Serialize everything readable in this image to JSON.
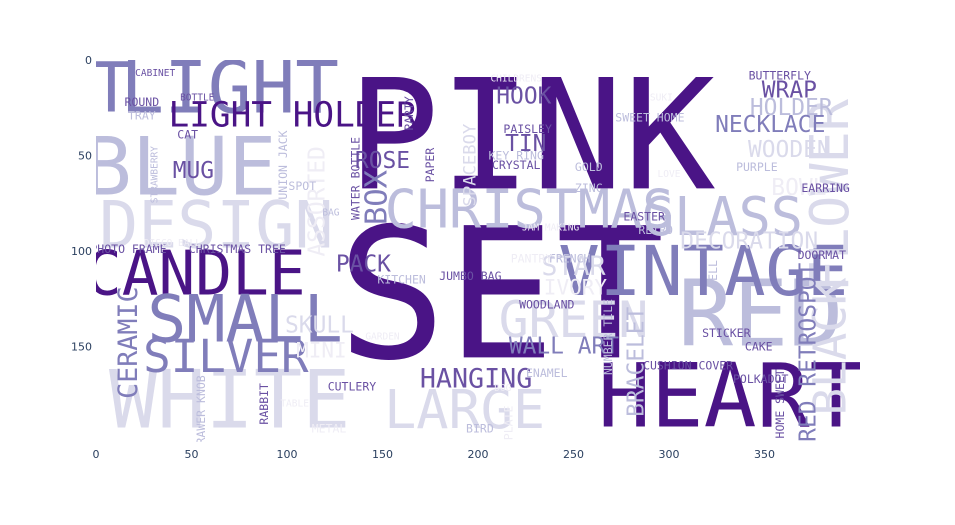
{
  "chart_data": {
    "type": "wordcloud",
    "title": "",
    "xlabel": "",
    "ylabel": "",
    "xlim": [
      0,
      400
    ],
    "ylim": [
      200,
      0
    ],
    "x_ticks": [
      0,
      50,
      100,
      150,
      200,
      250,
      300,
      350
    ],
    "y_ticks": [
      0,
      50,
      100,
      150
    ],
    "colors": {
      "darkest": "#4a1486",
      "dark": "#6a51a3",
      "mid": "#807dba",
      "light": "#bcbddc",
      "lighter": "#dadaeb",
      "lightest": "#efedf5"
    },
    "words": [
      {
        "text": "PINK",
        "x": 228,
        "y": 40,
        "size": 80,
        "color": "#4a1486",
        "rotate": 0
      },
      {
        "text": "SET",
        "x": 212,
        "y": 123,
        "size": 95,
        "color": "#4a1486",
        "rotate": 0
      },
      {
        "text": "HEART",
        "x": 332,
        "y": 176,
        "size": 46,
        "color": "#4a1486",
        "rotate": 0
      },
      {
        "text": "RED",
        "x": 348,
        "y": 133,
        "size": 48,
        "color": "#bcbddc",
        "rotate": 0
      },
      {
        "text": "BLUE",
        "x": 44,
        "y": 56,
        "size": 42,
        "color": "#bcbddc",
        "rotate": 0
      },
      {
        "text": "LIGHT",
        "x": 70,
        "y": 15,
        "size": 38,
        "color": "#807dba",
        "rotate": 0
      },
      {
        "text": "T",
        "x": 8,
        "y": 15,
        "size": 36,
        "color": "#807dba",
        "rotate": 0
      },
      {
        "text": "WHITE",
        "x": 70,
        "y": 178,
        "size": 42,
        "color": "#dadaeb",
        "rotate": 0
      },
      {
        "text": "DESIGN",
        "x": 63,
        "y": 87,
        "size": 34,
        "color": "#dadaeb",
        "rotate": 0
      },
      {
        "text": "CANDLE",
        "x": 52,
        "y": 112,
        "size": 32,
        "color": "#4a1486",
        "rotate": 0
      },
      {
        "text": "SMALL",
        "x": 78,
        "y": 136,
        "size": 34,
        "color": "#807dba",
        "rotate": 0
      },
      {
        "text": "SILVER",
        "x": 68,
        "y": 155,
        "size": 24,
        "color": "#807dba",
        "rotate": 0
      },
      {
        "text": "LIGHT HOLDER",
        "x": 103,
        "y": 29,
        "size": 18,
        "color": "#4a1486",
        "rotate": 0
      },
      {
        "text": "CHRISTMAS",
        "x": 227,
        "y": 78,
        "size": 28,
        "color": "#bcbddc",
        "rotate": 0
      },
      {
        "text": "GLASS",
        "x": 328,
        "y": 82,
        "size": 28,
        "color": "#bcbddc",
        "rotate": 0
      },
      {
        "text": "VINTAGE",
        "x": 318,
        "y": 111,
        "size": 36,
        "color": "#807dba",
        "rotate": 0
      },
      {
        "text": "FLOWER",
        "x": 384,
        "y": 71,
        "size": 28,
        "color": "#dadaeb",
        "rotate": -90
      },
      {
        "text": "BLACK",
        "x": 384,
        "y": 150,
        "size": 24,
        "color": "#dadaeb",
        "rotate": -90
      },
      {
        "text": "GREEN",
        "x": 250,
        "y": 136,
        "size": 26,
        "color": "#dadaeb",
        "rotate": 0
      },
      {
        "text": "LARGE",
        "x": 193,
        "y": 183,
        "size": 28,
        "color": "#dadaeb",
        "rotate": 0
      },
      {
        "text": "HANGING",
        "x": 199,
        "y": 167,
        "size": 14,
        "color": "#6a51a3",
        "rotate": 0
      },
      {
        "text": "WALL ART",
        "x": 245,
        "y": 150,
        "size": 12,
        "color": "#807dba",
        "rotate": 0
      },
      {
        "text": "STAR",
        "x": 250,
        "y": 108,
        "size": 14,
        "color": "#dadaeb",
        "rotate": 0
      },
      {
        "text": "BOX",
        "x": 147,
        "y": 72,
        "size": 16,
        "color": "#807dba",
        "rotate": -90
      },
      {
        "text": "ROSE",
        "x": 150,
        "y": 53,
        "size": 12,
        "color": "#6a51a3",
        "rotate": 0
      },
      {
        "text": "PACK",
        "x": 140,
        "y": 107,
        "size": 12,
        "color": "#6a51a3",
        "rotate": 0
      },
      {
        "text": "SKULL",
        "x": 117,
        "y": 139,
        "size": 12,
        "color": "#dadaeb",
        "rotate": 0
      },
      {
        "text": "HOOK",
        "x": 224,
        "y": 19,
        "size": 12,
        "color": "#6a51a3",
        "rotate": 0
      },
      {
        "text": "TIN",
        "x": 225,
        "y": 44,
        "size": 12,
        "color": "#6a51a3",
        "rotate": 0
      },
      {
        "text": "WRAP",
        "x": 363,
        "y": 16,
        "size": 12,
        "color": "#6a51a3",
        "rotate": 0
      },
      {
        "text": "HOLDER",
        "x": 364,
        "y": 25,
        "size": 12,
        "color": "#bcbddc",
        "rotate": 0
      },
      {
        "text": "NECKLACE",
        "x": 353,
        "y": 34,
        "size": 12,
        "color": "#807dba",
        "rotate": 0
      },
      {
        "text": "WOODEN",
        "x": 363,
        "y": 47,
        "size": 12,
        "color": "#dadaeb",
        "rotate": 0
      },
      {
        "text": "DECORATION",
        "x": 342,
        "y": 95,
        "size": 12,
        "color": "#dadaeb",
        "rotate": 0
      },
      {
        "text": "BOWL",
        "x": 368,
        "y": 67,
        "size": 12,
        "color": "#efedf5",
        "rotate": 0
      },
      {
        "text": "MUG",
        "x": 51,
        "y": 58,
        "size": 12,
        "color": "#6a51a3",
        "rotate": 0
      },
      {
        "text": "CERAMIC",
        "x": 17,
        "y": 148,
        "size": 14,
        "color": "#807dba",
        "rotate": -90
      },
      {
        "text": "RED RETROSPOT",
        "x": 373,
        "y": 153,
        "size": 12,
        "color": "#807dba",
        "rotate": -90
      },
      {
        "text": "BRACELET",
        "x": 283,
        "y": 158,
        "size": 12,
        "color": "#bcbddc",
        "rotate": -90
      },
      {
        "text": "ASSORTED",
        "x": 116,
        "y": 74,
        "size": 12,
        "color": "#efedf5",
        "rotate": -90
      },
      {
        "text": "IVORY",
        "x": 251,
        "y": 119,
        "size": 11,
        "color": "#efedf5",
        "rotate": 0
      },
      {
        "text": "MINI",
        "x": 118,
        "y": 152,
        "size": 11,
        "color": "#efedf5",
        "rotate": 0
      },
      {
        "text": "SPACEBOY",
        "x": 196,
        "y": 55,
        "size": 9,
        "color": "#dadaeb",
        "rotate": -90
      },
      {
        "text": "PAISLEY",
        "x": 226,
        "y": 36,
        "size": 6,
        "color": "#6a51a3",
        "rotate": 0
      },
      {
        "text": "CRYSTAL",
        "x": 220,
        "y": 55,
        "size": 6,
        "color": "#6a51a3",
        "rotate": 0
      },
      {
        "text": "KEY RING",
        "x": 220,
        "y": 50,
        "size": 6,
        "color": "#bcbddc",
        "rotate": 0
      },
      {
        "text": "PHOTO FRAME",
        "x": 17,
        "y": 99,
        "size": 6,
        "color": "#6a51a3",
        "rotate": 0
      },
      {
        "text": "CHRISTMAS TREE",
        "x": 74,
        "y": 99,
        "size": 6,
        "color": "#6a51a3",
        "rotate": 0
      },
      {
        "text": "CUSHION COVER",
        "x": 310,
        "y": 160,
        "size": 6,
        "color": "#6a51a3",
        "rotate": 0
      },
      {
        "text": "POLKADOT",
        "x": 348,
        "y": 167,
        "size": 6,
        "color": "#6a51a3",
        "rotate": 0
      },
      {
        "text": "CUTLERY",
        "x": 134,
        "y": 171,
        "size": 6,
        "color": "#6a51a3",
        "rotate": 0
      },
      {
        "text": "STICKER",
        "x": 330,
        "y": 143,
        "size": 6,
        "color": "#6a51a3",
        "rotate": 0
      },
      {
        "text": "CAKE",
        "x": 347,
        "y": 150,
        "size": 6,
        "color": "#6a51a3",
        "rotate": 0
      },
      {
        "text": "WOODLAND",
        "x": 236,
        "y": 128,
        "size": 6,
        "color": "#6a51a3",
        "rotate": 0
      },
      {
        "text": "JUMBO BAG",
        "x": 196,
        "y": 113,
        "size": 6,
        "color": "#6a51a3",
        "rotate": 0
      },
      {
        "text": "KITCHEN",
        "x": 160,
        "y": 115,
        "size": 6,
        "color": "#bcbddc",
        "rotate": 0
      },
      {
        "text": "NUMBER TILE",
        "x": 268,
        "y": 145,
        "size": 6,
        "color": "#bcbddc",
        "rotate": -90
      },
      {
        "text": "ENAMEL",
        "x": 236,
        "y": 164,
        "size": 6,
        "color": "#bcbddc",
        "rotate": 0
      },
      {
        "text": "DOORMAT",
        "x": 380,
        "y": 102,
        "size": 6,
        "color": "#6a51a3",
        "rotate": 0
      },
      {
        "text": "BUTTERFLY",
        "x": 358,
        "y": 8,
        "size": 6,
        "color": "#6a51a3",
        "rotate": 0
      },
      {
        "text": "SWEET HOME",
        "x": 290,
        "y": 30,
        "size": 6,
        "color": "#bcbddc",
        "rotate": 0
      },
      {
        "text": "EARRING",
        "x": 382,
        "y": 67,
        "size": 6,
        "color": "#6a51a3",
        "rotate": 0
      },
      {
        "text": "EASTER",
        "x": 287,
        "y": 82,
        "size": 6,
        "color": "#6a51a3",
        "rotate": 0
      },
      {
        "text": "RETRO",
        "x": 293,
        "y": 89,
        "size": 6,
        "color": "#bcbddc",
        "rotate": 0
      },
      {
        "text": "GOLD",
        "x": 258,
        "y": 56,
        "size": 6,
        "color": "#bcbddc",
        "rotate": 0
      },
      {
        "text": "ZINC",
        "x": 258,
        "y": 67,
        "size": 6,
        "color": "#bcbddc",
        "rotate": 0
      },
      {
        "text": "BELL",
        "x": 323,
        "y": 112,
        "size": 6,
        "color": "#bcbddc",
        "rotate": -90
      },
      {
        "text": "BIRD",
        "x": 201,
        "y": 193,
        "size": 6,
        "color": "#bcbddc",
        "rotate": 0
      },
      {
        "text": "PLATE",
        "x": 216,
        "y": 190,
        "size": 6,
        "color": "#efedf5",
        "rotate": -90
      },
      {
        "text": "RABBIT",
        "x": 88,
        "y": 180,
        "size": 6,
        "color": "#6a51a3",
        "rotate": -90
      },
      {
        "text": "METAL",
        "x": 122,
        "y": 193,
        "size": 6,
        "color": "#efedf5",
        "rotate": 0
      },
      {
        "text": "CAT",
        "x": 48,
        "y": 39,
        "size": 6,
        "color": "#6a51a3",
        "rotate": 0
      },
      {
        "text": "ROUND",
        "x": 24,
        "y": 22,
        "size": 6,
        "color": "#6a51a3",
        "rotate": 0
      },
      {
        "text": "TRAY",
        "x": 24,
        "y": 29,
        "size": 6,
        "color": "#bcbddc",
        "rotate": 0
      },
      {
        "text": "CABINET",
        "x": 31,
        "y": 7,
        "size": 5,
        "color": "#6a51a3",
        "rotate": 0
      },
      {
        "text": "BOTTLE",
        "x": 53,
        "y": 20,
        "size": 5,
        "color": "#6a51a3",
        "rotate": 0
      },
      {
        "text": "WATER BOTTLE",
        "x": 136,
        "y": 62,
        "size": 6,
        "color": "#6a51a3",
        "rotate": -90
      },
      {
        "text": "PAPER",
        "x": 175,
        "y": 55,
        "size": 6,
        "color": "#6a51a3",
        "rotate": -90
      },
      {
        "text": "PARTY",
        "x": 164,
        "y": 28,
        "size": 6,
        "color": "#6a51a3",
        "rotate": -90
      },
      {
        "text": "UNION JACK",
        "x": 98,
        "y": 55,
        "size": 6,
        "color": "#bcbddc",
        "rotate": -90
      },
      {
        "text": "SPOT",
        "x": 108,
        "y": 66,
        "size": 6,
        "color": "#bcbddc",
        "rotate": 0
      },
      {
        "text": "PURPLE",
        "x": 346,
        "y": 56,
        "size": 6,
        "color": "#bcbddc",
        "rotate": 0
      },
      {
        "text": "FRENCH",
        "x": 248,
        "y": 104,
        "size": 6,
        "color": "#bcbddc",
        "rotate": 0
      },
      {
        "text": "PANTRY",
        "x": 228,
        "y": 104,
        "size": 6,
        "color": "#efedf5",
        "rotate": 0
      },
      {
        "text": "STRAWBERRY",
        "x": 31,
        "y": 60,
        "size": 5,
        "color": "#bcbddc",
        "rotate": -90
      },
      {
        "text": "CHILDRENS",
        "x": 220,
        "y": 10,
        "size": 5,
        "color": "#efedf5",
        "rotate": 0
      },
      {
        "text": "DRAWER KNOB",
        "x": 55,
        "y": 185,
        "size": 6,
        "color": "#bcbddc",
        "rotate": -90
      },
      {
        "text": "HOME SWEET",
        "x": 358,
        "y": 180,
        "size": 6,
        "color": "#6a51a3",
        "rotate": -90
      },
      {
        "text": "TABLE",
        "x": 104,
        "y": 180,
        "size": 5,
        "color": "#efedf5",
        "rotate": 0
      },
      {
        "text": "DOG",
        "x": 213,
        "y": 172,
        "size": 5,
        "color": "#efedf5",
        "rotate": 0
      },
      {
        "text": "DISCO BALL",
        "x": 40,
        "y": 96,
        "size": 5,
        "color": "#efedf5",
        "rotate": 0
      },
      {
        "text": "JAM MAKING",
        "x": 238,
        "y": 88,
        "size": 5,
        "color": "#efedf5",
        "rotate": 0
      },
      {
        "text": "SUKI",
        "x": 296,
        "y": 20,
        "size": 5,
        "color": "#efedf5",
        "rotate": 0
      },
      {
        "text": "LOVE",
        "x": 300,
        "y": 60,
        "size": 5,
        "color": "#efedf5",
        "rotate": 0
      },
      {
        "text": "BAG",
        "x": 123,
        "y": 80,
        "size": 5,
        "color": "#bcbddc",
        "rotate": 0
      },
      {
        "text": "GARDEN",
        "x": 150,
        "y": 145,
        "size": 5,
        "color": "#efedf5",
        "rotate": 0
      }
    ]
  }
}
